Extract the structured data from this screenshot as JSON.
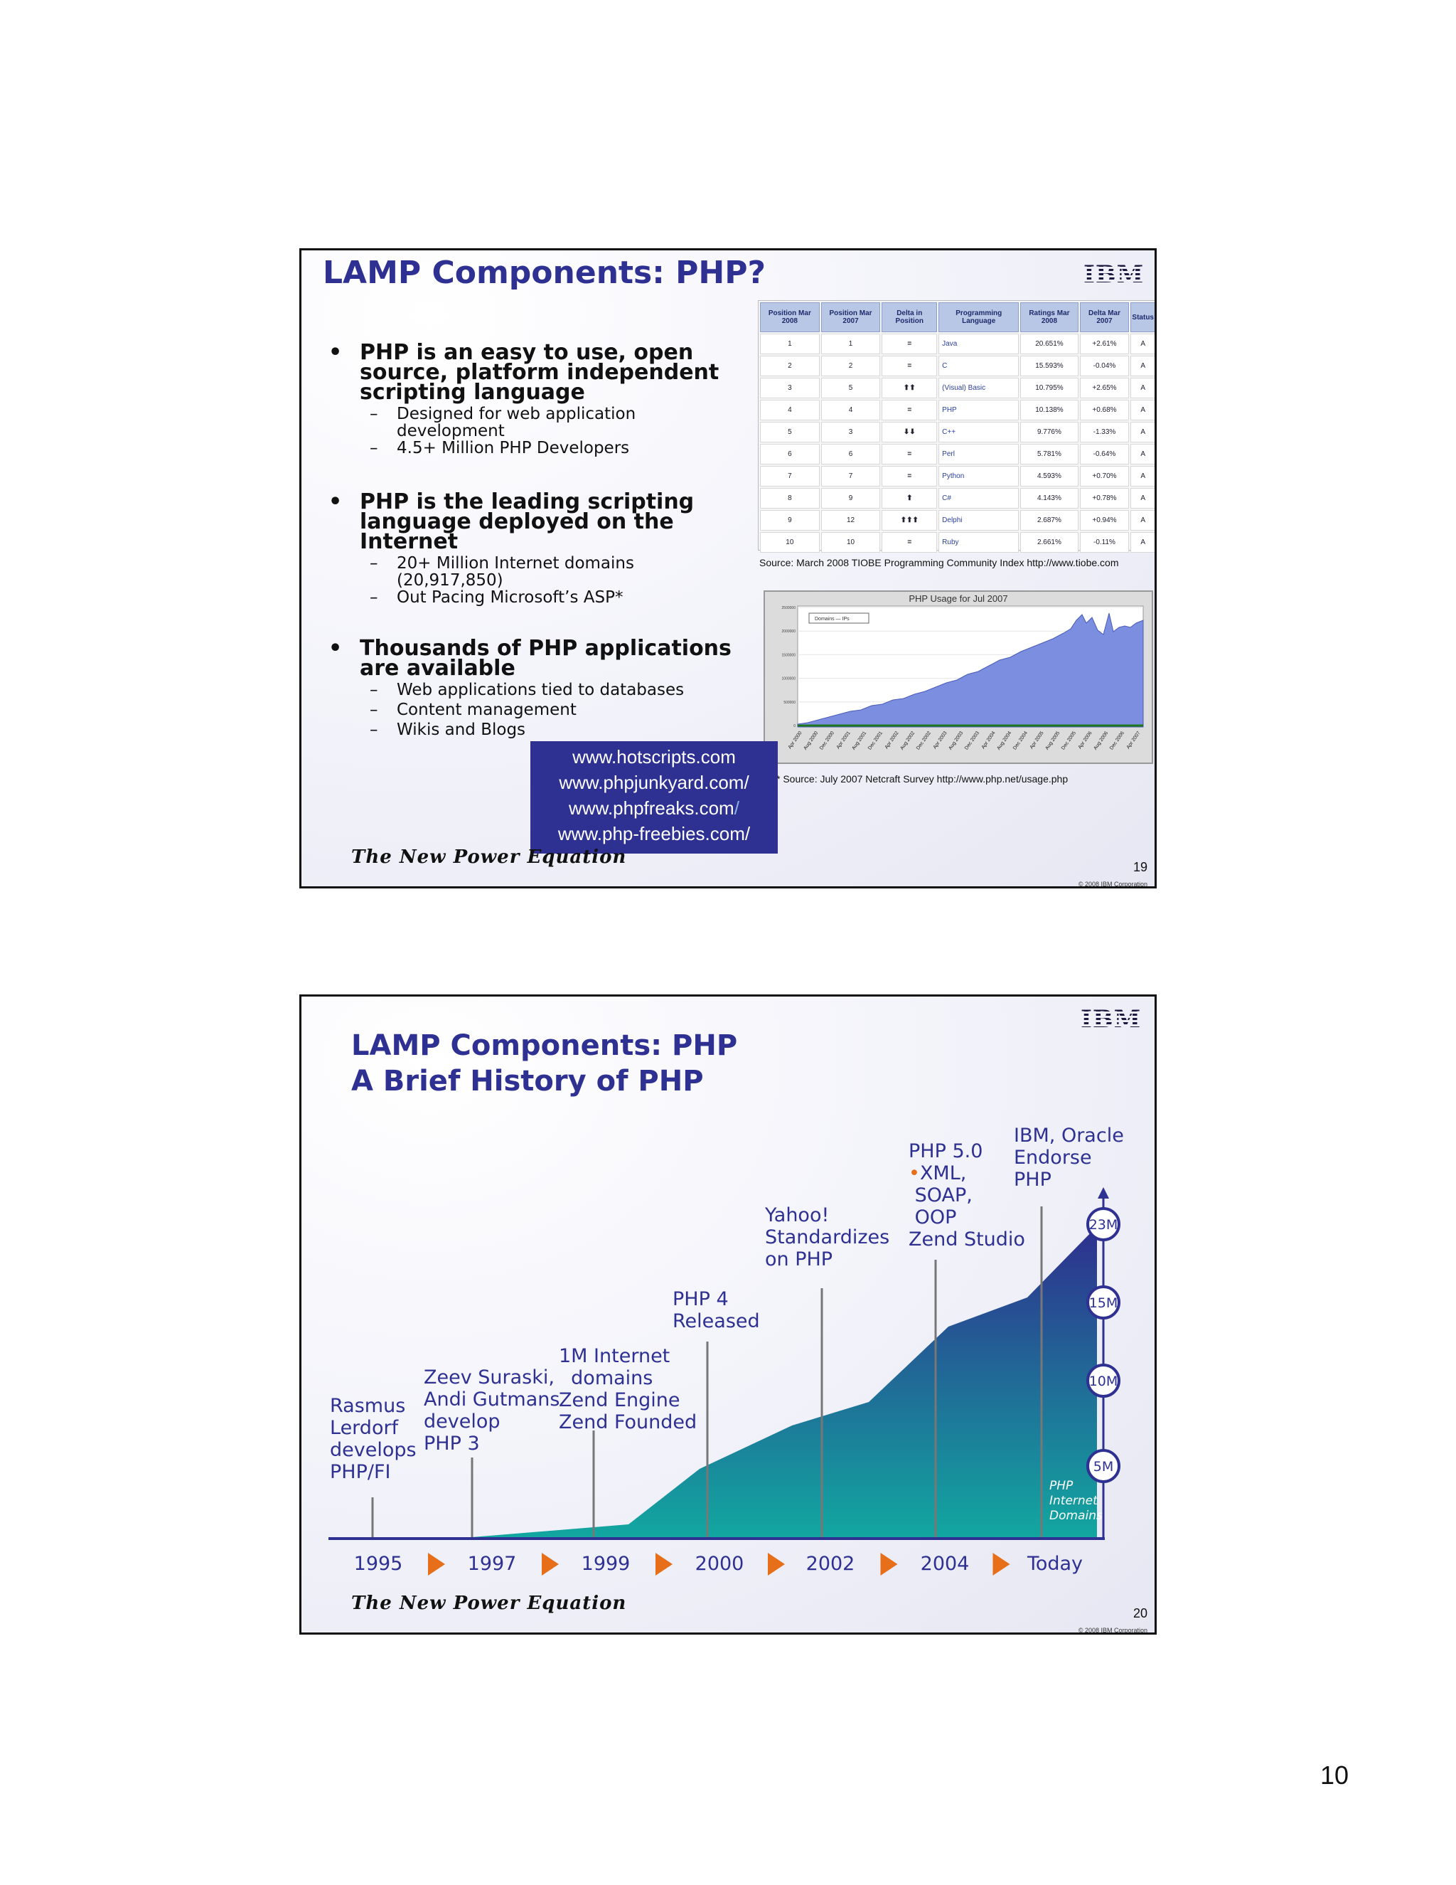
{
  "slide1": {
    "title": "LAMP Components: PHP?",
    "logo": "IBM",
    "bullets": [
      {
        "text": [
          "PHP is an easy to use, open",
          "source, platform independent",
          "scripting language"
        ],
        "subs": [
          [
            "Designed for web application",
            "development"
          ],
          [
            "4.5+ Million PHP Developers"
          ]
        ]
      },
      {
        "text": [
          "PHP is the leading scripting",
          "language deployed on the",
          "Internet"
        ],
        "subs": [
          [
            "20+ Million Internet domains",
            "(20,917,850)"
          ],
          [
            "Out Pacing Microsoft’s ASP*"
          ]
        ]
      },
      {
        "text": [
          "Thousands of PHP applications",
          "are available"
        ],
        "subs": [
          [
            "Web applications tied to databases"
          ],
          [
            "Content management"
          ],
          [
            "Wikis and Blogs"
          ]
        ]
      }
    ],
    "tiobe_table": {
      "headers": [
        "Position Mar 2008",
        "Position Mar 2007",
        "Delta in Position",
        "Programming Language",
        "Ratings Mar 2008",
        "Delta Mar 2007",
        "Status"
      ],
      "rows": [
        {
          "pos2008": "1",
          "pos2007": "1",
          "delta": "=",
          "delta_kind": "eq",
          "lang": "Java",
          "rating": "20.651%",
          "change": "+2.61%",
          "status": "A"
        },
        {
          "pos2008": "2",
          "pos2007": "2",
          "delta": "=",
          "delta_kind": "eq",
          "lang": "C",
          "rating": "15.593%",
          "change": "-0.04%",
          "status": "A"
        },
        {
          "pos2008": "3",
          "pos2007": "5",
          "delta": "⬆⬆",
          "delta_kind": "up",
          "lang": "(Visual) Basic",
          "rating": "10.795%",
          "change": "+2.65%",
          "status": "A"
        },
        {
          "pos2008": "4",
          "pos2007": "4",
          "delta": "=",
          "delta_kind": "eq",
          "lang": "PHP",
          "rating": "10.138%",
          "change": "+0.68%",
          "status": "A"
        },
        {
          "pos2008": "5",
          "pos2007": "3",
          "delta": "⬇⬇",
          "delta_kind": "dn",
          "lang": "C++",
          "rating": "9.776%",
          "change": "-1.33%",
          "status": "A"
        },
        {
          "pos2008": "6",
          "pos2007": "6",
          "delta": "=",
          "delta_kind": "eq",
          "lang": "Perl",
          "rating": "5.781%",
          "change": "-0.64%",
          "status": "A"
        },
        {
          "pos2008": "7",
          "pos2007": "7",
          "delta": "=",
          "delta_kind": "eq",
          "lang": "Python",
          "rating": "4.593%",
          "change": "+0.70%",
          "status": "A"
        },
        {
          "pos2008": "8",
          "pos2007": "9",
          "delta": "⬆",
          "delta_kind": "up",
          "lang": "C#",
          "rating": "4.143%",
          "change": "+0.78%",
          "status": "A"
        },
        {
          "pos2008": "9",
          "pos2007": "12",
          "delta": "⬆⬆⬆",
          "delta_kind": "up",
          "lang": "Delphi",
          "rating": "2.687%",
          "change": "+0.94%",
          "status": "A"
        },
        {
          "pos2008": "10",
          "pos2007": "10",
          "delta": "=",
          "delta_kind": "eq",
          "lang": "Ruby",
          "rating": "2.661%",
          "change": "-0.11%",
          "status": "A"
        }
      ]
    },
    "tiobe_source": "Source:  March 2008 TIOBE Programming Community Index  http://www.tiobe.com",
    "netcraft_chart": {
      "title": "PHP Usage for Jul 2007",
      "legend": "Domains — IPs",
      "y_ticks": [
        "2500000",
        "2000000",
        "1500000",
        "1000000",
        "500000",
        "0"
      ],
      "x_ticks": [
        "Apr 2000",
        "Aug 2000",
        "Dec 2000",
        "Apr 2001",
        "Aug 2001",
        "Dec 2001",
        "Apr 2002",
        "Aug 2002",
        "Dec 2002",
        "Apr 2003",
        "Aug 2003",
        "Dec 2003",
        "Apr 2004",
        "Aug 2004",
        "Dec 2004",
        "Apr 2005",
        "Aug 2005",
        "Dec 2005",
        "Apr 2006",
        "Aug 2006",
        "Dec 2006",
        "Apr 2007"
      ]
    },
    "netcraft_source": "* Source:  July 2007 Netcraft Survey   http://www.php.net/usage.php",
    "sites": [
      "www.hotscripts.com",
      "www.phpjunkyard.com/",
      "www.phpfreaks.com",
      "www.php-freebies.com/"
    ],
    "sites_dim_suffix": "/",
    "footer_brand": "The New Power Equation",
    "page_number": "19",
    "copyright": "© 2008 IBM Corporation"
  },
  "slide2": {
    "title_line1": "LAMP Components:  PHP",
    "title_line2": "A Brief History of PHP",
    "logo": "IBM",
    "events": [
      {
        "lines": [
          "Rasmus",
          "Lerdorf",
          "develops",
          "PHP/FI"
        ]
      },
      {
        "lines": [
          "Zeev Suraski,",
          "Andi Gutmans",
          "develop",
          "PHP 3"
        ]
      },
      {
        "lines": [
          "1M Internet",
          "  domains",
          "Zend Engine",
          "Zend Founded"
        ]
      },
      {
        "lines": [
          "PHP 4",
          "Released"
        ]
      },
      {
        "lines": [
          "Yahoo!",
          "Standardizes",
          "on PHP"
        ]
      },
      {
        "lines": [
          "PHP 5.0",
          "XML,",
          " SOAP,",
          " OOP",
          "Zend Studio"
        ]
      },
      {
        "lines": [
          "IBM, Oracle",
          "Endorse",
          "PHP"
        ]
      }
    ],
    "timeline_labels": [
      "1995",
      "1997",
      "1999",
      "2000",
      "2002",
      "2004",
      "Today"
    ],
    "markers": [
      "23M",
      "15M",
      "10M",
      "5M"
    ],
    "area_caption": [
      "PHP",
      "Internet",
      "Domains"
    ],
    "footer_brand": "The New Power Equation",
    "page_number": "20",
    "copyright": "© 2008 IBM Corporation"
  },
  "page_number": "10",
  "colors": {
    "title": "#2e3192",
    "accent_orange": "#e86f1a",
    "area_top": "#2e3192",
    "area_bottom": "#12a5a0"
  }
}
